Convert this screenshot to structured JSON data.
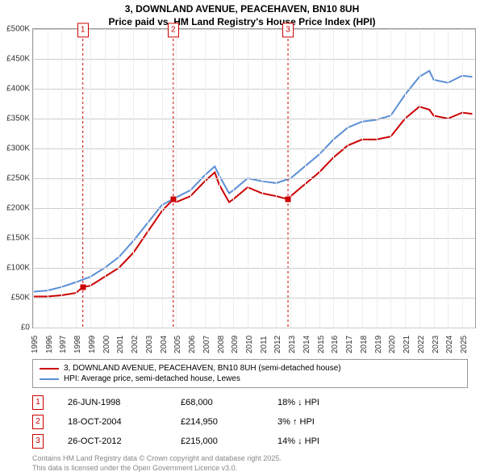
{
  "title_line1": "3, DOWNLAND AVENUE, PEACEHAVEN, BN10 8UH",
  "title_line2": "Price paid vs. HM Land Registry's House Price Index (HPI)",
  "chart": {
    "type": "line",
    "background_color": "#ffffff",
    "grid_color": "#cccccc",
    "y": {
      "min": 0,
      "max": 500000,
      "step": 50000,
      "labels": [
        "£0",
        "£50K",
        "£100K",
        "£150K",
        "£200K",
        "£250K",
        "£300K",
        "£350K",
        "£400K",
        "£450K",
        "£500K"
      ],
      "label_fontsize": 10
    },
    "x": {
      "min": 1995,
      "max": 2025.9,
      "labels": [
        "1995",
        "1996",
        "1997",
        "1998",
        "1999",
        "2000",
        "2001",
        "2002",
        "2003",
        "2004",
        "2005",
        "2006",
        "2007",
        "2008",
        "2009",
        "2010",
        "2011",
        "2012",
        "2013",
        "2014",
        "2015",
        "2016",
        "2017",
        "2018",
        "2019",
        "2020",
        "2021",
        "2022",
        "2023",
        "2024",
        "2025"
      ],
      "label_fontsize": 10
    },
    "series": [
      {
        "name": "property",
        "color": "#cc0000",
        "width": 2,
        "points": [
          [
            1995,
            52000
          ],
          [
            1996,
            52000
          ],
          [
            1997,
            54000
          ],
          [
            1998,
            58000
          ],
          [
            1998.48,
            68000
          ],
          [
            1999,
            70000
          ],
          [
            2000,
            85000
          ],
          [
            2001,
            100000
          ],
          [
            2002,
            125000
          ],
          [
            2003,
            160000
          ],
          [
            2004,
            195000
          ],
          [
            2004.8,
            214950
          ],
          [
            2005,
            210000
          ],
          [
            2006,
            220000
          ],
          [
            2007,
            245000
          ],
          [
            2007.7,
            260000
          ],
          [
            2008,
            240000
          ],
          [
            2008.7,
            210000
          ],
          [
            2009,
            215000
          ],
          [
            2010,
            235000
          ],
          [
            2011,
            225000
          ],
          [
            2012,
            220000
          ],
          [
            2012.82,
            215000
          ],
          [
            2013,
            220000
          ],
          [
            2014,
            240000
          ],
          [
            2015,
            260000
          ],
          [
            2016,
            285000
          ],
          [
            2017,
            305000
          ],
          [
            2018,
            315000
          ],
          [
            2019,
            315000
          ],
          [
            2020,
            320000
          ],
          [
            2021,
            350000
          ],
          [
            2022,
            370000
          ],
          [
            2022.7,
            365000
          ],
          [
            2023,
            355000
          ],
          [
            2024,
            350000
          ],
          [
            2025,
            360000
          ],
          [
            2025.7,
            358000
          ]
        ]
      },
      {
        "name": "hpi",
        "color": "#5b8fd6",
        "width": 2,
        "points": [
          [
            1995,
            60000
          ],
          [
            1996,
            62000
          ],
          [
            1997,
            68000
          ],
          [
            1998,
            76000
          ],
          [
            1999,
            85000
          ],
          [
            2000,
            100000
          ],
          [
            2001,
            118000
          ],
          [
            2002,
            145000
          ],
          [
            2003,
            175000
          ],
          [
            2004,
            205000
          ],
          [
            2005,
            218000
          ],
          [
            2006,
            230000
          ],
          [
            2007,
            255000
          ],
          [
            2007.7,
            270000
          ],
          [
            2008,
            255000
          ],
          [
            2008.7,
            225000
          ],
          [
            2009,
            230000
          ],
          [
            2010,
            250000
          ],
          [
            2011,
            245000
          ],
          [
            2012,
            242000
          ],
          [
            2013,
            250000
          ],
          [
            2014,
            270000
          ],
          [
            2015,
            290000
          ],
          [
            2016,
            315000
          ],
          [
            2017,
            335000
          ],
          [
            2018,
            345000
          ],
          [
            2019,
            348000
          ],
          [
            2020,
            355000
          ],
          [
            2021,
            390000
          ],
          [
            2022,
            420000
          ],
          [
            2022.7,
            430000
          ],
          [
            2023,
            415000
          ],
          [
            2024,
            410000
          ],
          [
            2025,
            422000
          ],
          [
            2025.7,
            420000
          ]
        ]
      }
    ],
    "sales_markers": [
      {
        "n": "1",
        "x": 1998.48,
        "y": 68000
      },
      {
        "n": "2",
        "x": 2004.8,
        "y": 214950
      },
      {
        "n": "3",
        "x": 2012.82,
        "y": 215000
      }
    ]
  },
  "legend": {
    "items": [
      {
        "color": "#cc0000",
        "label": "3, DOWNLAND AVENUE, PEACEHAVEN, BN10 8UH (semi-detached house)"
      },
      {
        "color": "#5b8fd6",
        "label": "HPI: Average price, semi-detached house, Lewes"
      }
    ]
  },
  "sales_table": [
    {
      "n": "1",
      "date": "26-JUN-1998",
      "price": "£68,000",
      "diff": "18% ↓ HPI"
    },
    {
      "n": "2",
      "date": "18-OCT-2004",
      "price": "£214,950",
      "diff": "3% ↑ HPI"
    },
    {
      "n": "3",
      "date": "26-OCT-2012",
      "price": "£215,000",
      "diff": "14% ↓ HPI"
    }
  ],
  "attribution_line1": "Contains HM Land Registry data © Crown copyright and database right 2025.",
  "attribution_line2": "This data is licensed under the Open Government Licence v3.0."
}
